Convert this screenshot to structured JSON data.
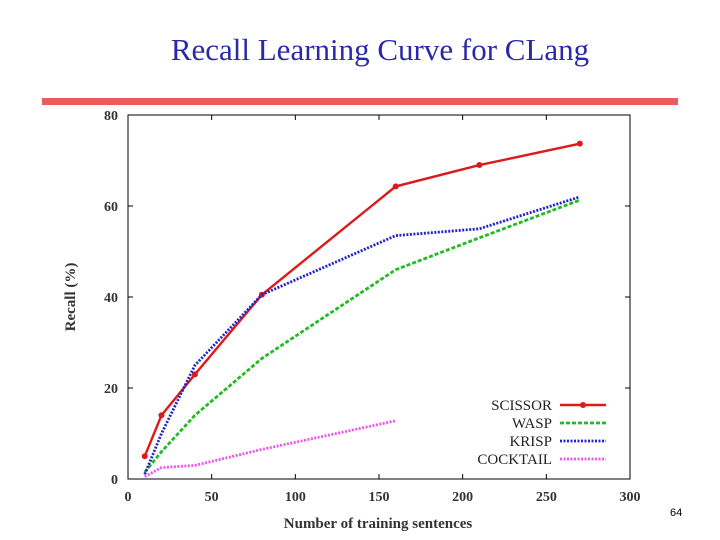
{
  "slide": {
    "title": "Recall Learning Curve for CLang",
    "page_number": "64"
  },
  "colors": {
    "title": "#2a2aa8",
    "rule": "#f05a5a"
  },
  "chart_data": {
    "type": "line",
    "title": "",
    "xlabel": "Number of training sentences",
    "ylabel": "Recall (%)",
    "xlim": [
      0,
      300
    ],
    "ylim": [
      0,
      80
    ],
    "xticks": [
      0,
      50,
      100,
      150,
      200,
      250,
      300
    ],
    "yticks": [
      0,
      20,
      40,
      60,
      80
    ],
    "grid": false,
    "legend_position": "bottom-right",
    "series": [
      {
        "name": "SCISSOR",
        "color": "#dd1a1a",
        "style": "solid",
        "markers": true,
        "x": [
          10,
          20,
          40,
          80,
          160,
          210,
          270
        ],
        "y": [
          5,
          14,
          23,
          40.5,
          64.3,
          69,
          73.7
        ]
      },
      {
        "name": "WASP",
        "color": "#22bb22",
        "style": "dashed",
        "markers": false,
        "x": [
          10,
          20,
          40,
          80,
          160,
          210,
          270
        ],
        "y": [
          1.5,
          6,
          14,
          26.5,
          46,
          53,
          61.3
        ]
      },
      {
        "name": "KRISP",
        "color": "#2222cc",
        "style": "dotted",
        "markers": false,
        "x": [
          10,
          20,
          40,
          80,
          160,
          210,
          270
        ],
        "y": [
          1,
          10,
          25,
          40.5,
          53.5,
          55,
          62
        ]
      },
      {
        "name": "COCKTAIL",
        "color": "#ee55ee",
        "style": "dotted",
        "markers": false,
        "x": [
          10,
          20,
          40,
          80,
          160
        ],
        "y": [
          0.5,
          2.5,
          3,
          6.5,
          12.8
        ]
      }
    ]
  }
}
